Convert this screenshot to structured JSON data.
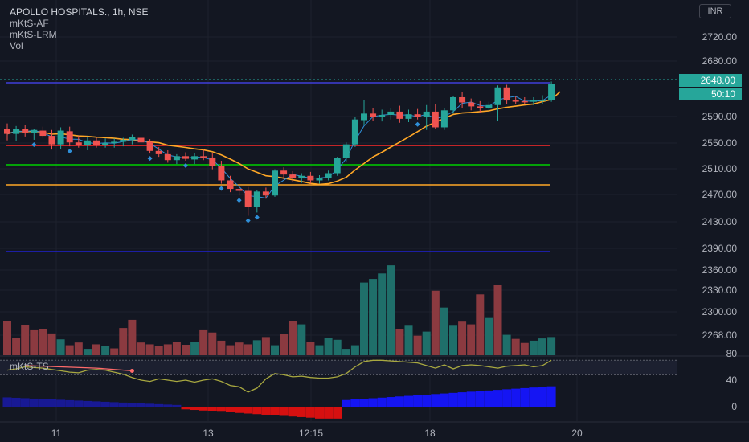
{
  "chart_data": {
    "type": "candlestick",
    "title": "APOLLO HOSPITALS., 1h, NSE",
    "indicators": [
      "mKtS-AF",
      "mKtS-LRM",
      "Vol"
    ],
    "currency": "INR",
    "price_axis": {
      "ticks": [
        "2720.00",
        "2680.00",
        "2590.00",
        "2550.00",
        "2510.00",
        "2470.00",
        "2430.00",
        "2390.00",
        "2360.00",
        "2330.00",
        "2300.00",
        "2268.00"
      ],
      "range": [
        2260,
        2760
      ]
    },
    "time_axis": {
      "ticks": [
        "11",
        "13",
        "12:15",
        "18",
        "20"
      ]
    },
    "current_price": "2648.00",
    "countdown": "50:10",
    "candles": [
      [
        2580,
        2588,
        2562,
        2572
      ],
      [
        2572,
        2584,
        2561,
        2580
      ],
      [
        2579,
        2586,
        2568,
        2574
      ],
      [
        2573,
        2579,
        2563,
        2578
      ],
      [
        2577,
        2583,
        2566,
        2569
      ],
      [
        2569,
        2578,
        2548,
        2556
      ],
      [
        2556,
        2582,
        2549,
        2577
      ],
      [
        2576,
        2583,
        2553,
        2559
      ],
      [
        2559,
        2569,
        2551,
        2555
      ],
      [
        2555,
        2568,
        2547,
        2562
      ],
      [
        2562,
        2566,
        2551,
        2555
      ],
      [
        2555,
        2565,
        2551,
        2558
      ],
      [
        2558,
        2565,
        2551,
        2560
      ],
      [
        2560,
        2566,
        2553,
        2563
      ],
      [
        2563,
        2571,
        2556,
        2567
      ],
      [
        2566,
        2591,
        2555,
        2559
      ],
      [
        2560,
        2564,
        2542,
        2546
      ],
      [
        2546,
        2552,
        2537,
        2541
      ],
      [
        2541,
        2547,
        2528,
        2532
      ],
      [
        2532,
        2541,
        2526,
        2538
      ],
      [
        2538,
        2544,
        2531,
        2534
      ],
      [
        2533,
        2543,
        2526,
        2538
      ],
      [
        2538,
        2548,
        2532,
        2536
      ],
      [
        2536,
        2543,
        2518,
        2523
      ],
      [
        2523,
        2531,
        2496,
        2501
      ],
      [
        2501,
        2508,
        2483,
        2488
      ],
      [
        2488,
        2496,
        2478,
        2485
      ],
      [
        2485,
        2491,
        2447,
        2460
      ],
      [
        2460,
        2486,
        2452,
        2484
      ],
      [
        2484,
        2490,
        2473,
        2478
      ],
      [
        2478,
        2518,
        2476,
        2516
      ],
      [
        2516,
        2521,
        2503,
        2510
      ],
      [
        2510,
        2515,
        2498,
        2504
      ],
      [
        2504,
        2512,
        2497,
        2508
      ],
      [
        2508,
        2514,
        2496,
        2501
      ],
      [
        2501,
        2509,
        2496,
        2505
      ],
      [
        2505,
        2516,
        2501,
        2512
      ],
      [
        2512,
        2537,
        2508,
        2535
      ],
      [
        2535,
        2559,
        2530,
        2556
      ],
      [
        2556,
        2598,
        2552,
        2594
      ],
      [
        2593,
        2623,
        2585,
        2603
      ],
      [
        2603,
        2611,
        2592,
        2598
      ],
      [
        2598,
        2609,
        2591,
        2601
      ],
      [
        2601,
        2612,
        2594,
        2606
      ],
      [
        2606,
        2615,
        2589,
        2595
      ],
      [
        2595,
        2609,
        2590,
        2602
      ],
      [
        2602,
        2610,
        2594,
        2598
      ],
      [
        2598,
        2616,
        2578,
        2606
      ],
      [
        2606,
        2617,
        2579,
        2582
      ],
      [
        2582,
        2611,
        2578,
        2608
      ],
      [
        2608,
        2630,
        2603,
        2628
      ],
      [
        2628,
        2636,
        2611,
        2620
      ],
      [
        2620,
        2626,
        2608,
        2614
      ],
      [
        2614,
        2622,
        2604,
        2612
      ],
      [
        2612,
        2621,
        2607,
        2616
      ],
      [
        2616,
        2646,
        2592,
        2643
      ],
      [
        2643,
        2647,
        2617,
        2623
      ],
      [
        2623,
        2629,
        2617,
        2622
      ],
      [
        2622,
        2628,
        2617,
        2621
      ],
      [
        2621,
        2628,
        2616,
        2623
      ],
      [
        2623,
        2631,
        2618,
        2624
      ],
      [
        2624,
        2652,
        2621,
        2648
      ]
    ],
    "volume": [
      75,
      38,
      66,
      55,
      58,
      48,
      35,
      22,
      28,
      14,
      24,
      20,
      15,
      60,
      78,
      28,
      24,
      20,
      24,
      30,
      23,
      30,
      55,
      50,
      32,
      22,
      28,
      24,
      33,
      40,
      22,
      46,
      75,
      68,
      30,
      22,
      38,
      34,
      14,
      22,
      160,
      168,
      180,
      198,
      57,
      65,
      43,
      52,
      142,
      105,
      65,
      74,
      68,
      134,
      82,
      154,
      45,
      36,
      27,
      32,
      37,
      40
    ],
    "volume_up": [
      false,
      false,
      false,
      false,
      false,
      false,
      true,
      false,
      false,
      true,
      false,
      true,
      false,
      false,
      false,
      false,
      false,
      false,
      false,
      false,
      false,
      true,
      false,
      false,
      false,
      false,
      false,
      false,
      true,
      false,
      true,
      false,
      false,
      true,
      false,
      true,
      true,
      true,
      true,
      true,
      true,
      true,
      true,
      true,
      false,
      true,
      false,
      true,
      false,
      true,
      true,
      false,
      false,
      false,
      true,
      false,
      true,
      false,
      false,
      true,
      true,
      true
    ],
    "levels": [
      {
        "price": 2646,
        "color": "#3f3fd9"
      },
      {
        "price": 2548,
        "color": "#ff2a2a"
      },
      {
        "price": 2516,
        "color": "#00d000"
      },
      {
        "price": 2487,
        "color": "#ffa726"
      },
      {
        "price": 2386,
        "color": "#2020d0"
      }
    ],
    "lower_pane": {
      "label": "mKtS-TS",
      "ticks": [
        "80",
        "40",
        "0"
      ],
      "range": [
        -8,
        88
      ],
      "band": [
        48,
        70
      ]
    },
    "colors": {
      "up": "#26a69a",
      "down": "#ef5350",
      "vol_up": "#1f6f6a",
      "vol_down": "#8b3a40",
      "ma": "#ffa726",
      "fast": "#2f8fd8",
      "background": "#131722",
      "grid": "#1e222d"
    }
  }
}
